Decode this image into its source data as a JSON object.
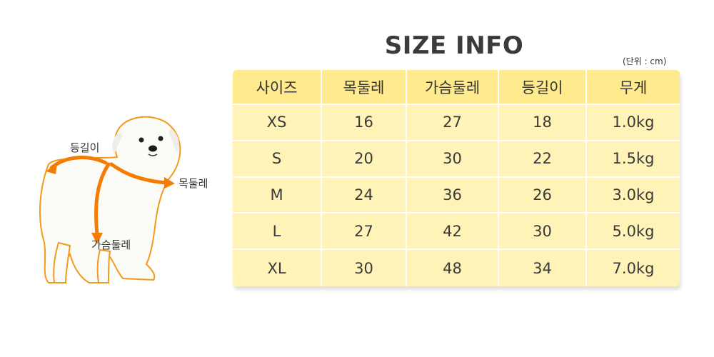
{
  "title": "SIZE INFO",
  "unit_note": "(단위 : cm)",
  "table": {
    "headers": [
      "사이즈",
      "목둘레",
      "가슴둘레",
      "등길이",
      "무게"
    ],
    "rows": [
      [
        "XS",
        "16",
        "27",
        "18",
        "1.0kg"
      ],
      [
        "S",
        "20",
        "30",
        "22",
        "1.5kg"
      ],
      [
        "M",
        "24",
        "36",
        "26",
        "3.0kg"
      ],
      [
        "L",
        "27",
        "42",
        "30",
        "5.0kg"
      ],
      [
        "XL",
        "30",
        "48",
        "34",
        "7.0kg"
      ]
    ]
  },
  "dog_labels": {
    "back_length": "등길이",
    "neck": "목둘레",
    "chest": "가슴둘레"
  },
  "colors": {
    "header_bg": "#ffea8e",
    "row_bg": "#fff3b8",
    "arrow": "#f57c00"
  }
}
